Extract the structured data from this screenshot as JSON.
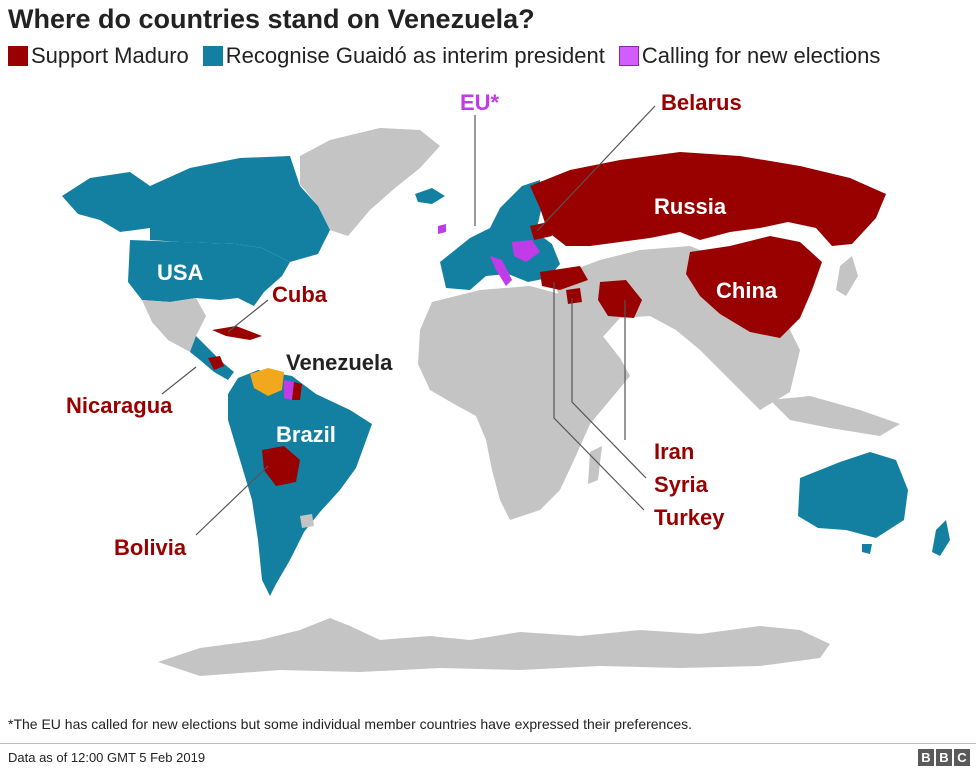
{
  "title": "Where do countries stand on Venezuela?",
  "legend": [
    {
      "label": "Support Maduro",
      "color": "#990000"
    },
    {
      "label": "Recognise Guaidó as interim president",
      "color": "#1380A1"
    },
    {
      "label": "Calling for new elections",
      "color": "#D25CFF"
    }
  ],
  "colors": {
    "support": "#990000",
    "recognise": "#1380A1",
    "elections": "#C23BE8",
    "venezuela": "#F2A81D",
    "other": "#C4C4C4",
    "leader": "#555555"
  },
  "labels": {
    "eu": "EU*",
    "belarus": "Belarus",
    "russia": "Russia",
    "china": "China",
    "usa": "USA",
    "cuba": "Cuba",
    "venezuela": "Venezuela",
    "nicaragua": "Nicaragua",
    "brazil": "Brazil",
    "bolivia": "Bolivia",
    "iran": "Iran",
    "syria": "Syria",
    "turkey": "Turkey"
  },
  "footnote": "*The EU has called for new elections but some individual member countries have expressed their preferences.",
  "source": "Data as of 12:00 GMT 5 Feb 2019",
  "logo": [
    "B",
    "B",
    "C"
  ]
}
